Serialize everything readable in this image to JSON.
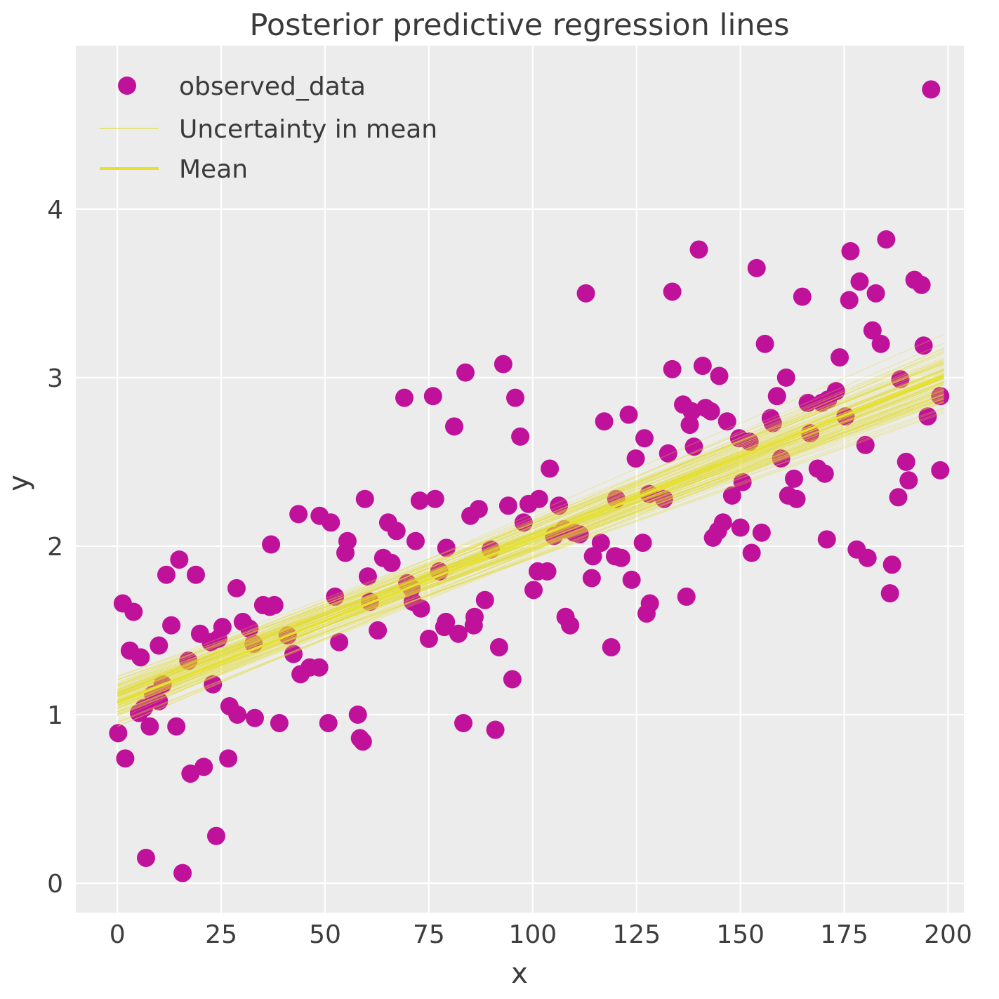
{
  "title": "Posterior predictive regression lines",
  "axes": {
    "xlabel": "x",
    "ylabel": "y",
    "x_ticks": [
      "0",
      "25",
      "50",
      "75",
      "100",
      "125",
      "150",
      "175",
      "200"
    ],
    "y_ticks": [
      "0",
      "1",
      "2",
      "3",
      "4"
    ]
  },
  "legend": {
    "items": [
      {
        "label": "observed_data",
        "marker": "dot"
      },
      {
        "label": "Uncertainty in mean",
        "marker": "thin-line"
      },
      {
        "label": "Mean",
        "marker": "line"
      }
    ]
  },
  "colors": {
    "axes_background": "#ececec",
    "grid": "#ffffff",
    "scatter": "#c0119b",
    "mean_line": "#e6e22c",
    "uncertainty_line": "#e0dc28",
    "text": "#3a3a3a"
  },
  "chart_data": {
    "type": "scatter",
    "title": "Posterior predictive regression lines",
    "xlabel": "x",
    "ylabel": "y",
    "xlim": [
      -10,
      203.8
    ],
    "ylim": [
      -0.175,
      4.97
    ],
    "x_ticks": [
      0,
      25,
      50,
      75,
      100,
      125,
      150,
      175,
      200
    ],
    "y_ticks": [
      0,
      1,
      2,
      3,
      4
    ],
    "grid": true,
    "legend_position": "upper left",
    "series": [
      {
        "name": "observed_data",
        "type": "scatter",
        "points": [
          [
            0.2,
            0.89
          ],
          [
            1.3,
            1.66
          ],
          [
            1.9,
            0.74
          ],
          [
            3,
            1.38
          ],
          [
            3.9,
            1.61
          ],
          [
            5.2,
            1.01
          ],
          [
            5.6,
            1.34
          ],
          [
            6.4,
            1.04
          ],
          [
            6.9,
            0.15
          ],
          [
            7.8,
            0.93
          ],
          [
            8.6,
            1.12
          ],
          [
            10,
            1.41
          ],
          [
            10,
            1.08
          ],
          [
            10.9,
            1.18
          ],
          [
            11.8,
            1.83
          ],
          [
            13,
            1.53
          ],
          [
            14.2,
            0.93
          ],
          [
            14.9,
            1.92
          ],
          [
            15.7,
            0.06
          ],
          [
            17.1,
            1.32
          ],
          [
            17.6,
            0.65
          ],
          [
            18.9,
            1.83
          ],
          [
            19.9,
            1.48
          ],
          [
            20.8,
            0.69
          ],
          [
            22.5,
            1.43
          ],
          [
            23,
            1.18
          ],
          [
            23.8,
            0.28
          ],
          [
            24.3,
            1.45
          ],
          [
            25.3,
            1.52
          ],
          [
            26.7,
            0.74
          ],
          [
            27,
            1.05
          ],
          [
            28.7,
            1.75
          ],
          [
            28.9,
            1
          ],
          [
            30.2,
            1.55
          ],
          [
            31.8,
            1.51
          ],
          [
            32.8,
            1.42
          ],
          [
            33.1,
            0.98
          ],
          [
            35.1,
            1.65
          ],
          [
            36.7,
            1.64
          ],
          [
            37,
            2.01
          ],
          [
            37.8,
            1.65
          ],
          [
            39,
            0.95
          ],
          [
            41,
            1.47
          ],
          [
            42.4,
            1.36
          ],
          [
            43.6,
            2.19
          ],
          [
            44.1,
            1.24
          ],
          [
            46.3,
            1.28
          ],
          [
            48.6,
            1.28
          ],
          [
            48.7,
            2.18
          ],
          [
            50.8,
            0.95
          ],
          [
            51.4,
            2.14
          ],
          [
            52.4,
            1.7
          ],
          [
            53.4,
            1.43
          ],
          [
            54.9,
            1.96
          ],
          [
            55.4,
            2.03
          ],
          [
            57.9,
            1
          ],
          [
            58.4,
            0.86
          ],
          [
            59.1,
            0.84
          ],
          [
            59.6,
            2.28
          ],
          [
            60.3,
            1.82
          ],
          [
            60.8,
            1.67
          ],
          [
            62.7,
            1.5
          ],
          [
            64,
            1.93
          ],
          [
            65.2,
            2.14
          ],
          [
            66,
            1.9
          ],
          [
            67.2,
            2.09
          ],
          [
            69.1,
            2.88
          ],
          [
            69.8,
            1.78
          ],
          [
            70.8,
            1.75
          ],
          [
            71.1,
            1.67
          ],
          [
            71.8,
            2.03
          ],
          [
            72.8,
            2.27
          ],
          [
            73.1,
            1.63
          ],
          [
            75,
            1.45
          ],
          [
            76,
            2.89
          ],
          [
            76.5,
            2.28
          ],
          [
            77.5,
            1.85
          ],
          [
            78.7,
            1.52
          ],
          [
            79.1,
            1.55
          ],
          [
            79.2,
            1.99
          ],
          [
            81.1,
            2.71
          ],
          [
            82.1,
            1.48
          ],
          [
            83.3,
            0.95
          ],
          [
            83.8,
            3.03
          ],
          [
            85,
            2.18
          ],
          [
            85.8,
            1.53
          ],
          [
            86,
            1.58
          ],
          [
            87,
            2.22
          ],
          [
            88.5,
            1.68
          ],
          [
            89.9,
            1.98
          ],
          [
            91,
            0.91
          ],
          [
            91.9,
            1.4
          ],
          [
            92.9,
            3.08
          ],
          [
            94.1,
            2.24
          ],
          [
            95.1,
            1.21
          ],
          [
            95.8,
            2.88
          ],
          [
            97,
            2.65
          ],
          [
            97.8,
            2.14
          ],
          [
            99,
            2.25
          ],
          [
            100.2,
            1.74
          ],
          [
            101.2,
            1.85
          ],
          [
            101.5,
            2.28
          ],
          [
            103.5,
            1.85
          ],
          [
            104.1,
            2.46
          ],
          [
            105.1,
            2.06
          ],
          [
            106.3,
            2.24
          ],
          [
            107.6,
            2.1
          ],
          [
            107.9,
            1.58
          ],
          [
            109,
            1.53
          ],
          [
            110,
            2.08
          ],
          [
            111.3,
            2.07
          ],
          [
            112.8,
            3.5
          ],
          [
            114.2,
            1.81
          ],
          [
            114.5,
            1.94
          ],
          [
            116.4,
            2.02
          ],
          [
            117.2,
            2.74
          ],
          [
            118.9,
            1.4
          ],
          [
            119.8,
            1.94
          ],
          [
            120.1,
            2.28
          ],
          [
            121.3,
            1.93
          ],
          [
            123.1,
            2.78
          ],
          [
            123.8,
            1.8
          ],
          [
            124.8,
            2.52
          ],
          [
            126.5,
            2.02
          ],
          [
            126.9,
            2.64
          ],
          [
            127.4,
            1.6
          ],
          [
            128,
            2.31
          ],
          [
            128.2,
            1.66
          ],
          [
            131.6,
            2.28
          ],
          [
            132.6,
            2.55
          ],
          [
            133.6,
            3.05
          ],
          [
            133.6,
            3.51
          ],
          [
            136.2,
            2.84
          ],
          [
            137,
            1.7
          ],
          [
            137.8,
            2.72
          ],
          [
            138.3,
            2.8
          ],
          [
            138.8,
            2.59
          ],
          [
            140,
            3.76
          ],
          [
            140.9,
            3.07
          ],
          [
            141.6,
            2.82
          ],
          [
            142.9,
            2.8
          ],
          [
            143.4,
            2.05
          ],
          [
            144.6,
            2.09
          ],
          [
            144.9,
            3.01
          ],
          [
            145.8,
            2.14
          ],
          [
            146.8,
            2.74
          ],
          [
            148,
            2.3
          ],
          [
            149.7,
            2.64
          ],
          [
            150,
            2.11
          ],
          [
            150.5,
            2.38
          ],
          [
            152.2,
            2.62
          ],
          [
            152.7,
            1.96
          ],
          [
            153.9,
            3.65
          ],
          [
            155.1,
            2.08
          ],
          [
            155.9,
            3.2
          ],
          [
            157.3,
            2.76
          ],
          [
            157.8,
            2.73
          ],
          [
            158.8,
            2.89
          ],
          [
            159.8,
            2.52
          ],
          [
            161,
            3
          ],
          [
            161.5,
            2.3
          ],
          [
            162.9,
            2.4
          ],
          [
            163.5,
            2.28
          ],
          [
            164.9,
            3.48
          ],
          [
            166.2,
            2.85
          ],
          [
            166.8,
            2.67
          ],
          [
            168.6,
            2.46
          ],
          [
            169.6,
            2.85
          ],
          [
            170.3,
            2.43
          ],
          [
            170.8,
            2.04
          ],
          [
            171.1,
            2.87
          ],
          [
            173,
            2.92
          ],
          [
            173.9,
            3.12
          ],
          [
            175.3,
            2.77
          ],
          [
            176.2,
            3.46
          ],
          [
            176.5,
            3.75
          ],
          [
            178,
            1.98
          ],
          [
            178.7,
            3.57
          ],
          [
            180.1,
            2.6
          ],
          [
            180.6,
            1.93
          ],
          [
            181.8,
            3.28
          ],
          [
            182.6,
            3.5
          ],
          [
            183.8,
            3.2
          ],
          [
            185.1,
            3.82
          ],
          [
            186,
            1.72
          ],
          [
            186.5,
            1.89
          ],
          [
            188,
            2.29
          ],
          [
            188.5,
            2.99
          ],
          [
            189.9,
            2.5
          ],
          [
            190.5,
            2.39
          ],
          [
            191.9,
            3.58
          ],
          [
            193.6,
            3.55
          ],
          [
            194.1,
            3.19
          ],
          [
            195.1,
            2.77
          ],
          [
            195.9,
            4.71
          ],
          [
            198.1,
            2.89
          ],
          [
            198.1,
            2.45
          ]
        ]
      },
      {
        "name": "Uncertainty in mean",
        "type": "line-ensemble",
        "n_lines": 100,
        "seed": 42,
        "x_start": 0,
        "x_end": 199,
        "intercept_mean": 1.08,
        "intercept_std": 0.065,
        "intercept_range": [
          0.93,
          1.23
        ],
        "end_mean": 3.0,
        "end_std": 0.1,
        "end_range": [
          2.75,
          3.28
        ]
      },
      {
        "name": "Mean",
        "type": "line",
        "points": [
          [
            0,
            1.07
          ],
          [
            199,
            3.01
          ]
        ]
      }
    ]
  }
}
